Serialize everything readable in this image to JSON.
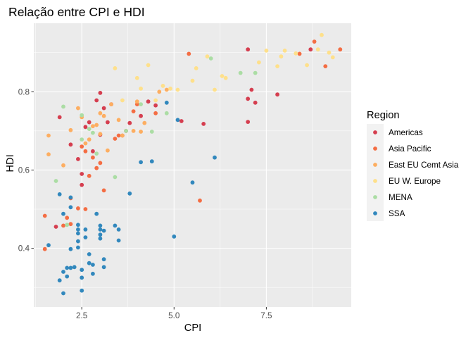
{
  "chart_data": {
    "type": "scatter",
    "title": "Relação entre CPI e HDI",
    "xlabel": "CPI",
    "ylabel": "HDI",
    "xlim": [
      1.2,
      9.8
    ],
    "ylim": [
      0.25,
      0.975
    ],
    "x_ticks": [
      2.5,
      5.0,
      7.5
    ],
    "x_tick_labels": [
      "2.5",
      "5.0",
      "7.5"
    ],
    "y_ticks": [
      0.4,
      0.6,
      0.8
    ],
    "y_tick_labels": [
      "0.4",
      "0.6",
      "0.8"
    ],
    "grid": true,
    "legend": {
      "title": "Region",
      "position": "right"
    },
    "series": [
      {
        "name": "Americas",
        "color": "#D53E4F",
        "points": [
          [
            1.8,
            0.455
          ],
          [
            1.9,
            0.735
          ],
          [
            2.2,
            0.665
          ],
          [
            2.4,
            0.628
          ],
          [
            2.5,
            0.59
          ],
          [
            2.5,
            0.562
          ],
          [
            2.6,
            0.71
          ],
          [
            2.7,
            0.722
          ],
          [
            2.8,
            0.648
          ],
          [
            2.9,
            0.778
          ],
          [
            3.0,
            0.797
          ],
          [
            3.0,
            0.69
          ],
          [
            3.1,
            0.758
          ],
          [
            3.2,
            0.722
          ],
          [
            3.3,
            0.768
          ],
          [
            3.7,
            0.7
          ],
          [
            3.8,
            0.72
          ],
          [
            4.1,
            0.738
          ],
          [
            4.3,
            0.775
          ],
          [
            4.5,
            0.765
          ],
          [
            5.2,
            0.725
          ],
          [
            5.8,
            0.718
          ],
          [
            7.0,
            0.908
          ],
          [
            7.0,
            0.782
          ],
          [
            7.0,
            0.723
          ],
          [
            7.1,
            0.805
          ],
          [
            7.2,
            0.772
          ],
          [
            7.8,
            0.793
          ],
          [
            8.7,
            0.908
          ]
        ]
      },
      {
        "name": "Asia Pacific",
        "color": "#F46D43",
        "points": [
          [
            1.5,
            0.483
          ],
          [
            1.5,
            0.398
          ],
          [
            2.0,
            0.458
          ],
          [
            2.1,
            0.478
          ],
          [
            2.2,
            0.528
          ],
          [
            2.2,
            0.462
          ],
          [
            2.4,
            0.502
          ],
          [
            2.5,
            0.66
          ],
          [
            2.6,
            0.648
          ],
          [
            2.6,
            0.5
          ],
          [
            2.7,
            0.585
          ],
          [
            2.8,
            0.632
          ],
          [
            2.9,
            0.605
          ],
          [
            3.0,
            0.618
          ],
          [
            3.1,
            0.548
          ],
          [
            3.4,
            0.68
          ],
          [
            3.5,
            0.688
          ],
          [
            3.6,
            0.688
          ],
          [
            3.9,
            0.75
          ],
          [
            4.0,
            0.768
          ],
          [
            4.5,
            0.745
          ],
          [
            5.4,
            0.897
          ],
          [
            5.7,
            0.522
          ],
          [
            8.4,
            0.897
          ],
          [
            8.8,
            0.928
          ],
          [
            9.1,
            0.865
          ],
          [
            9.5,
            0.908
          ]
        ]
      },
      {
        "name": "East EU Cemt Asia",
        "color": "#FDAE61",
        "points": [
          [
            1.6,
            0.688
          ],
          [
            1.6,
            0.64
          ],
          [
            2.0,
            0.612
          ],
          [
            2.2,
            0.702
          ],
          [
            2.4,
            0.758
          ],
          [
            2.5,
            0.735
          ],
          [
            2.6,
            0.668
          ],
          [
            2.7,
            0.678
          ],
          [
            2.8,
            0.712
          ],
          [
            2.9,
            0.715
          ],
          [
            3.0,
            0.745
          ],
          [
            3.0,
            0.692
          ],
          [
            3.1,
            0.738
          ],
          [
            3.2,
            0.65
          ],
          [
            3.3,
            0.768
          ],
          [
            3.5,
            0.728
          ],
          [
            3.6,
            0.688
          ],
          [
            3.9,
            0.7
          ],
          [
            4.0,
            0.775
          ],
          [
            4.1,
            0.698
          ],
          [
            4.2,
            0.72
          ],
          [
            4.6,
            0.8
          ],
          [
            4.8,
            0.805
          ]
        ]
      },
      {
        "name": "EU W. Europe",
        "color": "#FEE08B",
        "points": [
          [
            3.4,
            0.86
          ],
          [
            3.6,
            0.778
          ],
          [
            4.0,
            0.835
          ],
          [
            4.1,
            0.808
          ],
          [
            4.3,
            0.868
          ],
          [
            4.5,
            0.778
          ],
          [
            4.7,
            0.815
          ],
          [
            4.9,
            0.808
          ],
          [
            5.1,
            0.805
          ],
          [
            5.5,
            0.828
          ],
          [
            5.6,
            0.86
          ],
          [
            5.9,
            0.89
          ],
          [
            6.1,
            0.805
          ],
          [
            6.3,
            0.84
          ],
          [
            6.4,
            0.835
          ],
          [
            7.3,
            0.875
          ],
          [
            7.5,
            0.905
          ],
          [
            7.8,
            0.865
          ],
          [
            7.9,
            0.89
          ],
          [
            8.0,
            0.905
          ],
          [
            8.3,
            0.898
          ],
          [
            8.6,
            0.868
          ],
          [
            8.9,
            0.908
          ],
          [
            9.0,
            0.945
          ],
          [
            9.2,
            0.9
          ],
          [
            9.3,
            0.888
          ]
        ]
      },
      {
        "name": "MENA",
        "color": "#ABDDA4",
        "points": [
          [
            1.8,
            0.572
          ],
          [
            2.0,
            0.762
          ],
          [
            2.1,
            0.46
          ],
          [
            2.5,
            0.678
          ],
          [
            2.5,
            0.74
          ],
          [
            2.7,
            0.705
          ],
          [
            2.8,
            0.695
          ],
          [
            2.9,
            0.642
          ],
          [
            3.4,
            0.582
          ],
          [
            3.7,
            0.7
          ],
          [
            4.1,
            0.768
          ],
          [
            4.4,
            0.698
          ],
          [
            4.8,
            0.745
          ],
          [
            6.0,
            0.885
          ],
          [
            6.8,
            0.848
          ],
          [
            7.2,
            0.848
          ]
        ]
      },
      {
        "name": "SSA",
        "color": "#3288BD",
        "points": [
          [
            1.6,
            0.408
          ],
          [
            1.9,
            0.318
          ],
          [
            1.9,
            0.538
          ],
          [
            2.0,
            0.285
          ],
          [
            2.0,
            0.34
          ],
          [
            2.0,
            0.488
          ],
          [
            2.1,
            0.328
          ],
          [
            2.1,
            0.35
          ],
          [
            2.2,
            0.398
          ],
          [
            2.2,
            0.35
          ],
          [
            2.2,
            0.53
          ],
          [
            2.2,
            0.505
          ],
          [
            2.3,
            0.352
          ],
          [
            2.4,
            0.448
          ],
          [
            2.4,
            0.46
          ],
          [
            2.4,
            0.438
          ],
          [
            2.4,
            0.418
          ],
          [
            2.4,
            0.402
          ],
          [
            2.5,
            0.292
          ],
          [
            2.5,
            0.325
          ],
          [
            2.5,
            0.345
          ],
          [
            2.6,
            0.448
          ],
          [
            2.6,
            0.428
          ],
          [
            2.7,
            0.362
          ],
          [
            2.7,
            0.385
          ],
          [
            2.8,
            0.335
          ],
          [
            2.8,
            0.358
          ],
          [
            2.9,
            0.488
          ],
          [
            3.0,
            0.435
          ],
          [
            3.0,
            0.425
          ],
          [
            3.0,
            0.448
          ],
          [
            3.0,
            0.458
          ],
          [
            3.1,
            0.445
          ],
          [
            3.1,
            0.372
          ],
          [
            3.1,
            0.352
          ],
          [
            3.4,
            0.458
          ],
          [
            3.5,
            0.448
          ],
          [
            3.5,
            0.42
          ],
          [
            3.8,
            0.54
          ],
          [
            4.1,
            0.62
          ],
          [
            4.4,
            0.622
          ],
          [
            4.8,
            0.772
          ],
          [
            5.0,
            0.43
          ],
          [
            5.1,
            0.728
          ],
          [
            5.5,
            0.568
          ],
          [
            6.1,
            0.632
          ]
        ]
      }
    ]
  }
}
